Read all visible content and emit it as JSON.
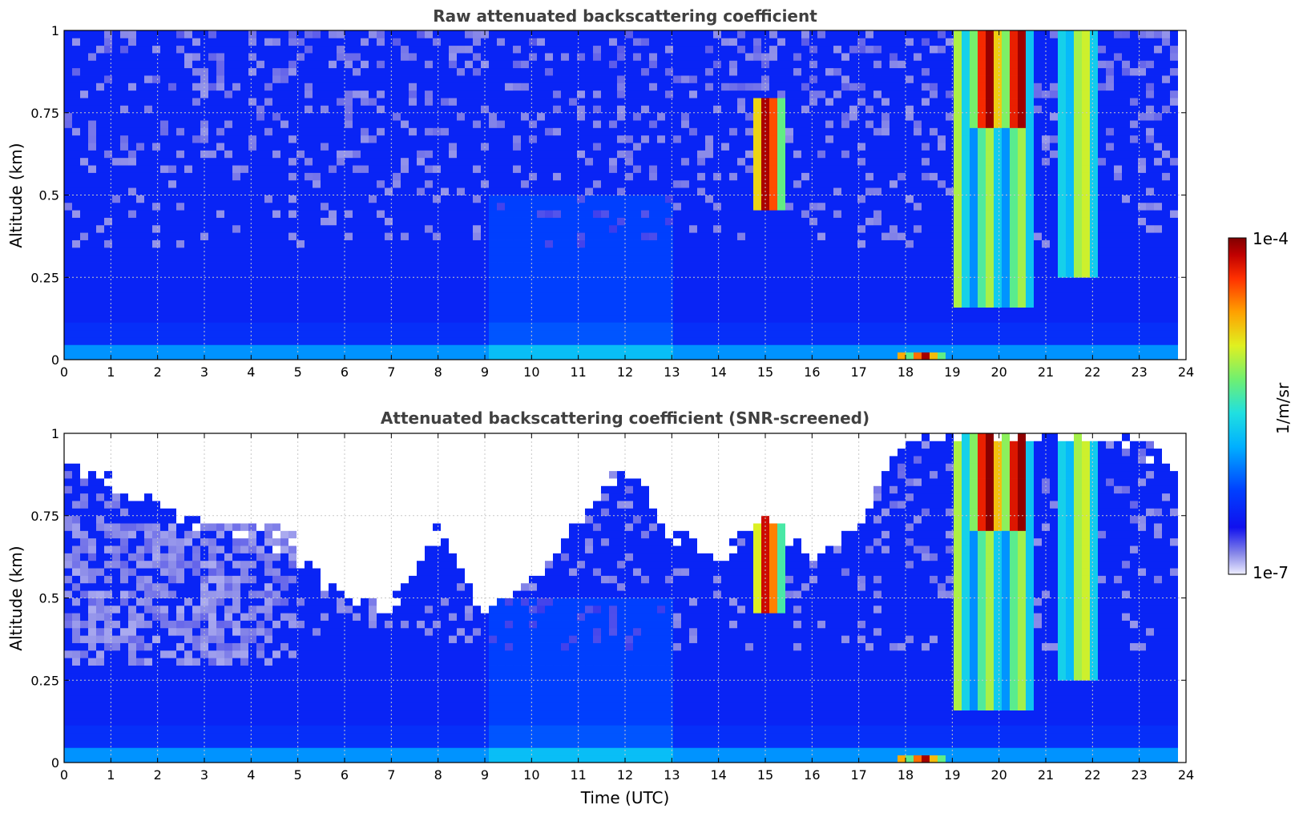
{
  "chart_data": [
    {
      "type": "heatmap",
      "title": "Raw attenuated backscattering coefficient",
      "xlabel": "",
      "ylabel": "Altitude (km)",
      "xlim": [
        0,
        24
      ],
      "ylim": [
        0,
        1
      ],
      "x_ticks": [
        "0",
        "1",
        "2",
        "3",
        "4",
        "5",
        "6",
        "7",
        "8",
        "9",
        "10",
        "11",
        "12",
        "13",
        "14",
        "15",
        "16",
        "17",
        "18",
        "19",
        "20",
        "21",
        "22",
        "23",
        "24"
      ],
      "y_ticks": [
        "0",
        "0.25",
        "0.5",
        "0.75",
        "1"
      ],
      "grid": true,
      "features": [
        {
          "x_range": [
            0,
            24
          ],
          "y_range": [
            0,
            1
          ],
          "level": 0.22
        },
        {
          "x_range": [
            14.8,
            15.5
          ],
          "y_range": [
            0.45,
            0.8
          ],
          "level": 0.95
        },
        {
          "x_range": [
            17.8,
            18.9
          ],
          "y_range": [
            0.0,
            0.03
          ],
          "level": 0.95
        },
        {
          "x_range": [
            19.1,
            20.8
          ],
          "y_range": [
            0.15,
            1.0
          ],
          "level": 0.6
        },
        {
          "x_range": [
            19.4,
            20.6
          ],
          "y_range": [
            0.7,
            1.0
          ],
          "level": 0.98
        },
        {
          "x_range": [
            21.3,
            22.2
          ],
          "y_range": [
            0.25,
            1.0
          ],
          "level": 0.65
        }
      ]
    },
    {
      "type": "heatmap",
      "title": "Attenuated backscattering coefficient (SNR-screened)",
      "xlabel": "Time (UTC)",
      "ylabel": "Altitude (km)",
      "xlim": [
        0,
        24
      ],
      "ylim": [
        0,
        1
      ],
      "x_ticks": [
        "0",
        "1",
        "2",
        "3",
        "4",
        "5",
        "6",
        "7",
        "8",
        "9",
        "10",
        "11",
        "12",
        "13",
        "14",
        "15",
        "16",
        "17",
        "18",
        "19",
        "20",
        "21",
        "22",
        "23",
        "24"
      ],
      "y_ticks": [
        "0",
        "0.25",
        "0.5",
        "0.75",
        "1"
      ],
      "grid": true,
      "screened_top_km": [
        0.92,
        0.85,
        0.78,
        0.72,
        0.68,
        0.62,
        0.5,
        0.47,
        0.7,
        0.45,
        0.55,
        0.72,
        0.9,
        0.7,
        0.62,
        0.75,
        0.62,
        0.72,
        1.0,
        1.0,
        1.0,
        1.0,
        1.0,
        0.95,
        0.9
      ],
      "features": [
        {
          "x_range": [
            0,
            24
          ],
          "y_range": [
            0,
            1
          ],
          "level": 0.22
        },
        {
          "x_range": [
            14.8,
            15.5
          ],
          "y_range": [
            0.45,
            0.8
          ],
          "level": 0.9
        },
        {
          "x_range": [
            17.8,
            18.9
          ],
          "y_range": [
            0.0,
            0.03
          ],
          "level": 0.95
        },
        {
          "x_range": [
            19.1,
            20.8
          ],
          "y_range": [
            0.15,
            1.0
          ],
          "level": 0.6
        },
        {
          "x_range": [
            19.4,
            20.6
          ],
          "y_range": [
            0.7,
            1.0
          ],
          "level": 1.0
        },
        {
          "x_range": [
            21.3,
            22.2
          ],
          "y_range": [
            0.25,
            1.0
          ],
          "level": 0.65
        }
      ]
    }
  ],
  "colorbar": {
    "max_label": "1e-4",
    "min_label": "1e-7",
    "unit_label": "1/m/sr",
    "colormap": [
      "#eeeeff",
      "#8a8ae8",
      "#1010ee",
      "#0040ff",
      "#00b0ff",
      "#20e0e0",
      "#70f070",
      "#e0f020",
      "#ffa000",
      "#ff3000",
      "#c00000",
      "#800000"
    ]
  }
}
